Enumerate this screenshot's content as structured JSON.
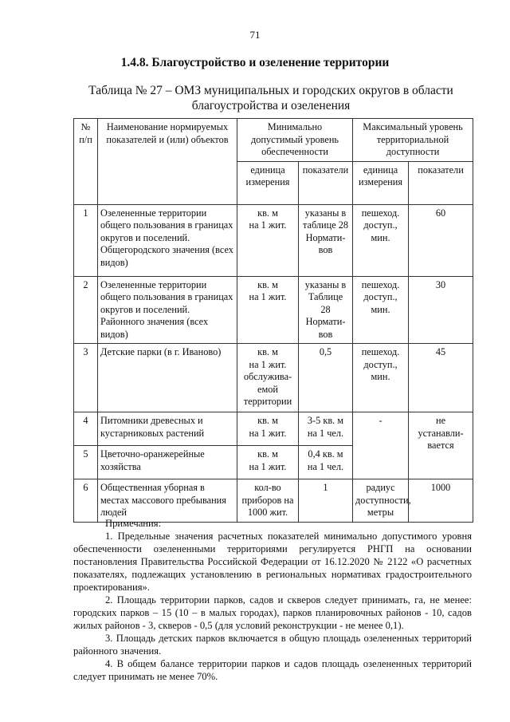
{
  "page_number": "71",
  "section_title": "1.4.8. Благоустройство и озеленение территории",
  "table_caption": "Таблица № 27 – ОМЗ муниципальных и городских округов в области\nблагоустройства и озеленения",
  "table": {
    "headers": {
      "num": "№\nп/п",
      "name": "Наименование нормируемых показателей и (или) объектов",
      "min_level": "Минимально\nдопустимый уровень\nобеспеченности",
      "max_level": "Максимальный уровень\nтерриториальной\nдоступности",
      "unit": "единица\nизмерения",
      "value": "показатели",
      "unit2": "единица\nизмерения",
      "value2": "показатели"
    },
    "rows": [
      {
        "num": "1",
        "name": "Озелененные территории общего пользования в границах округов и поселений. Общегородского значения (всех видов)",
        "unit": "кв. м\nна 1 жит.",
        "value": "указаны в\nтаблице 28\nНормати-\nвов",
        "unit2": "пешеход.\nдоступ.,\nмин.",
        "value2": "60"
      },
      {
        "num": "2",
        "name": "Озелененные территории общего пользования в границах округов и поселений. Районного значения (всех видов)",
        "unit": "кв. м\nна 1 жит.",
        "value": "указаны в\nТаблице\n28\nНормати-\nвов",
        "unit2": "пешеход.\nдоступ.,\nмин.",
        "value2": "30"
      },
      {
        "num": "3",
        "name": "Детские парки (в г. Иваново)",
        "unit": "кв. м\nна 1 жит.\nобслужива-\nемой\nтерритории",
        "value": "0,5",
        "unit2": "пешеход.\nдоступ.,\nмин.",
        "value2": "45"
      },
      {
        "num": "4",
        "name": "Питомники древесных и кустарниковых растений",
        "unit": "кв. м\nна 1 жит.",
        "value": "3-5 кв. м\nна 1 чел.",
        "unit2": "-",
        "value2": "не\nустанавли-\nвается"
      },
      {
        "num": "5",
        "name": "Цветочно-оранжерейные хозяйства",
        "unit": "кв. м\nна 1 жит.",
        "value": "0,4 кв. м\nна 1 чел."
      },
      {
        "num": "6",
        "name": "Общественная уборная в местах массового пребывания людей",
        "unit": "кол-во\nприборов на\n1000 жит.",
        "value": "1",
        "unit2": "радиус\nдоступности,\nметры",
        "value2": "1000"
      }
    ]
  },
  "notes": {
    "heading": "Примечания:",
    "items": [
      "1. Предельные значения расчетных показателей минимально допустимого уровня обеспеченности озелененными территориями регулируется РНГП на основании постановления Правительства Российской Федерации от 16.12.2020 № 2122 «О расчетных показателях, подлежащих установлению в региональных нормативах градостроительного проектирования».",
      "2. Площадь территории парков, садов и скверов следует принимать, га, не менее: городских парков – 15 (10 – в малых городах), парков планировочных районов - 10, садов жилых районов - 3, скверов - 0,5 (для условий реконструкции - не менее 0,1).",
      "3. Площадь детских парков включается в общую площадь озелененных территорий районного значения.",
      "4. В общем балансе территории парков и садов площадь озелененных территорий следует принимать не менее 70%."
    ]
  }
}
